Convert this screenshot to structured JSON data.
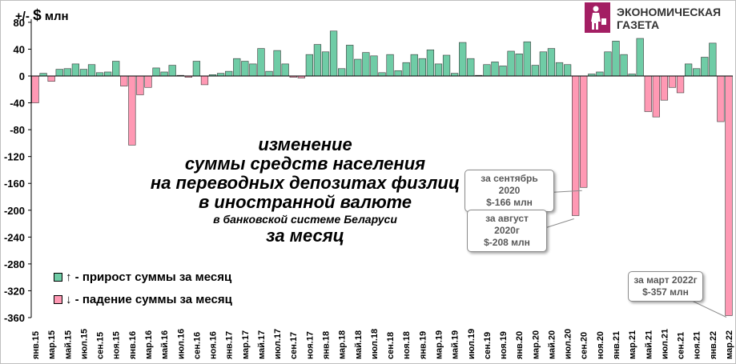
{
  "header": {
    "unit_prefix": "+/-",
    "unit_currency": "$",
    "unit_label": "млн"
  },
  "logo": {
    "line1": "ЭКОНОМИЧЕСКАЯ",
    "line2": "ГАЗЕТА"
  },
  "title_lines": [
    "изменение",
    "суммы средств населения",
    "на переводных депозитах физлиц",
    "в иностранной валюте"
  ],
  "title_sub": "в банковской системе Беларуси",
  "title_last": "за месяц",
  "legend": {
    "up": "↑ - прирост суммы за месяц",
    "down": "↓ - падение суммы за месяц"
  },
  "callouts": [
    {
      "line1": "за сентябрь 2020",
      "line2": "$-166 млн"
    },
    {
      "line1": "за август 2020г",
      "line2": "$-208 млн"
    },
    {
      "line1": "за март 2022г",
      "line2": "$-357 млн"
    }
  ],
  "chart_data": {
    "type": "bar",
    "ylabel": "+/- $ млн",
    "ylim": [
      -360,
      80
    ],
    "yticks": [
      80,
      40,
      0,
      -40,
      -80,
      -120,
      -160,
      -200,
      -240,
      -280,
      -320,
      -360
    ],
    "grid": false,
    "legend_position": "left",
    "colors": {
      "positive": "#6fcca6",
      "negative": "#ff99b4",
      "edge": "#3a3a3a"
    },
    "categories": [
      "янв.15",
      "фев.15",
      "мар.15",
      "апр.15",
      "май.15",
      "июн.15",
      "июл.15",
      "авг.15",
      "сен.15",
      "окт.15",
      "ноя.15",
      "дек.15",
      "янв.16",
      "фев.16",
      "мар.16",
      "апр.16",
      "май.16",
      "июн.16",
      "июл.16",
      "авг.16",
      "сен.16",
      "окт.16",
      "ноя.16",
      "дек.16",
      "янв.17",
      "фев.17",
      "мар.17",
      "апр.17",
      "май.17",
      "июн.17",
      "июл.17",
      "авг.17",
      "сен.17",
      "окт.17",
      "ноя.17",
      "дек.17",
      "янв.18",
      "фев.18",
      "мар.18",
      "апр.18",
      "май.18",
      "июн.18",
      "июл.18",
      "авг.18",
      "сен.18",
      "окт.18",
      "ноя.18",
      "дек.18",
      "янв.19",
      "фев.19",
      "мар.19",
      "апр.19",
      "май.19",
      "июн.19",
      "июл.19",
      "авг.19",
      "сен.19",
      "окт.19",
      "ноя.19",
      "дек.19",
      "янв.20",
      "фев.20",
      "мар.20",
      "апр.20",
      "май.20",
      "июн.20",
      "июл.20",
      "авг.20",
      "сен.20",
      "окт.20",
      "ноя.20",
      "дек.20",
      "янв.21",
      "фев.21",
      "мар.21",
      "апр.21",
      "май.21",
      "июн.21",
      "июл.21",
      "авг.21",
      "сен.21",
      "окт.21",
      "ноя.21",
      "дек.21",
      "янв.22",
      "фев.22",
      "мар.22"
    ],
    "tick_labels": [
      "янв.15",
      "мар.15",
      "май.15",
      "июл.15",
      "сен.15",
      "ноя.15",
      "янв.16",
      "мар.16",
      "май.16",
      "июл.16",
      "сен.16",
      "ноя.16",
      "янв.17",
      "мар.17",
      "май.17",
      "июл.17",
      "сен.17",
      "ноя.17",
      "янв.18",
      "мар.18",
      "май.18",
      "июл.18",
      "сен.18",
      "ноя.18",
      "янв.19",
      "мар.19",
      "май.19",
      "июл.19",
      "сен.19",
      "ноя.19",
      "янв.20",
      "мар.20",
      "май.20",
      "июл.20",
      "сен.20",
      "ноя.20",
      "янв.21",
      "мар.21",
      "май.21",
      "июл.21",
      "сен.21",
      "ноя.21",
      "янв.22",
      "мар.22"
    ],
    "values": [
      -40,
      4,
      -8,
      10,
      11,
      18,
      10,
      17,
      5,
      6,
      22,
      -15,
      -103,
      -28,
      -17,
      12,
      6,
      16,
      1,
      -2,
      22,
      -13,
      2,
      4,
      7,
      26,
      22,
      18,
      41,
      7,
      38,
      18,
      -2,
      -3,
      32,
      47,
      36,
      67,
      11,
      46,
      25,
      35,
      30,
      5,
      32,
      8,
      20,
      32,
      26,
      39,
      18,
      31,
      4,
      50,
      26,
      1,
      17,
      21,
      15,
      37,
      33,
      51,
      16,
      36,
      41,
      20,
      17,
      -208,
      -166,
      3,
      6,
      36,
      52,
      32,
      3,
      56,
      -53,
      -61,
      -36,
      -17,
      -25,
      18,
      11,
      28,
      49,
      -68,
      -357
    ]
  }
}
